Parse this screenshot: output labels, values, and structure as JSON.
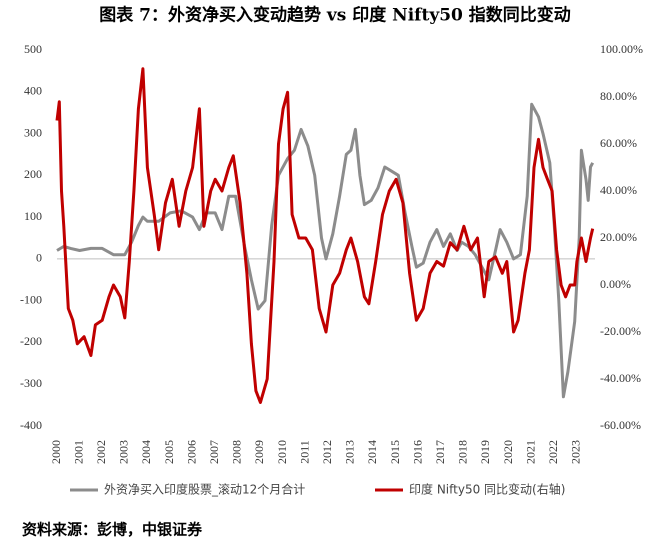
{
  "chart_data": {
    "type": "line",
    "title": "图表 7：外资净买入变动趋势 vs 印度 Nifty50 指数同比变动",
    "source": "资料来源：彭博，中银证券",
    "xlim": [
      2000,
      2023.8
    ],
    "xticks": [
      2000,
      2001,
      2002,
      2003,
      2004,
      2005,
      2006,
      2007,
      2008,
      2009,
      2010,
      2011,
      2012,
      2013,
      2014,
      2015,
      2016,
      2017,
      2018,
      2019,
      2020,
      2021,
      2022,
      2023
    ],
    "ylim": [
      -400,
      500
    ],
    "yticks": [
      -400,
      -300,
      -200,
      -100,
      0,
      100,
      200,
      300,
      400,
      500
    ],
    "y2lim": [
      -60,
      100
    ],
    "y2ticks": [
      {
        "value": -60,
        "label": "-60.00%"
      },
      {
        "value": -40,
        "label": "-40.00%"
      },
      {
        "value": -20,
        "label": "-20.00%"
      },
      {
        "value": 0,
        "label": "0.00%"
      },
      {
        "value": 20,
        "label": "20.00%"
      },
      {
        "value": 40,
        "label": "40.00%"
      },
      {
        "value": 60,
        "label": "60.00%"
      },
      {
        "value": 80,
        "label": "80.00%"
      },
      {
        "value": 100,
        "label": "100.00%"
      }
    ],
    "grid": false,
    "legend": "bottom",
    "series": [
      {
        "name": "外资净买入印度股票_滚动12个月合计",
        "color": "#8c8c8c",
        "axis": "y",
        "x": [
          2000,
          2000.3,
          2000.6,
          2001,
          2001.5,
          2002,
          2002.5,
          2003,
          2003.3,
          2003.6,
          2003.8,
          2004,
          2004.5,
          2005,
          2005.5,
          2006,
          2006.3,
          2006.6,
          2007,
          2007.3,
          2007.6,
          2007.9,
          2008.3,
          2008.6,
          2008.9,
          2009.2,
          2009.5,
          2009.8,
          2010.2,
          2010.5,
          2010.8,
          2011.1,
          2011.4,
          2011.7,
          2011.9,
          2012.2,
          2012.5,
          2012.8,
          2013,
          2013.2,
          2013.4,
          2013.6,
          2013.9,
          2014.2,
          2014.5,
          2014.8,
          2015.1,
          2015.4,
          2015.7,
          2015.9,
          2016.2,
          2016.5,
          2016.8,
          2017.1,
          2017.4,
          2017.7,
          2017.9,
          2018.2,
          2018.5,
          2018.8,
          2019.1,
          2019.4,
          2019.6,
          2019.9,
          2020.2,
          2020.5,
          2020.8,
          2021.0,
          2021.3,
          2021.5,
          2021.8,
          2022.0,
          2022.2,
          2022.4,
          2022.6,
          2022.9,
          2023.1,
          2023.2,
          2023.4,
          2023.5,
          2023.6,
          2023.7
        ],
        "values": [
          20,
          30,
          25,
          20,
          25,
          25,
          10,
          10,
          40,
          80,
          100,
          90,
          90,
          110,
          115,
          100,
          70,
          110,
          110,
          70,
          150,
          150,
          30,
          -50,
          -120,
          -100,
          80,
          200,
          240,
          260,
          310,
          270,
          200,
          50,
          0,
          60,
          150,
          250,
          260,
          310,
          200,
          130,
          140,
          170,
          220,
          210,
          200,
          110,
          30,
          -20,
          -10,
          40,
          70,
          30,
          60,
          20,
          40,
          30,
          10,
          -20,
          -50,
          20,
          70,
          40,
          0,
          10,
          150,
          370,
          340,
          300,
          230,
          80,
          -100,
          -330,
          -270,
          -150,
          50,
          260,
          190,
          140,
          220,
          230
        ]
      },
      {
        "name": "印度 Nifty50 同比变动(右轴)",
        "color": "#c00000",
        "axis": "y2",
        "x": [
          2000,
          2000.1,
          2000.2,
          2000.3,
          2000.5,
          2000.7,
          2000.9,
          2001.2,
          2001.5,
          2001.7,
          2002,
          2002.3,
          2002.5,
          2002.8,
          2003,
          2003.2,
          2003.4,
          2003.6,
          2003.8,
          2004,
          2004.3,
          2004.5,
          2004.8,
          2005.1,
          2005.4,
          2005.7,
          2006,
          2006.3,
          2006.5,
          2006.8,
          2007,
          2007.3,
          2007.6,
          2007.8,
          2008.1,
          2008.4,
          2008.6,
          2008.8,
          2009.0,
          2009.3,
          2009.6,
          2009.8,
          2010,
          2010.2,
          2010.4,
          2010.7,
          2011,
          2011.3,
          2011.6,
          2011.9,
          2012.2,
          2012.5,
          2012.8,
          2013,
          2013.3,
          2013.6,
          2013.8,
          2014.1,
          2014.4,
          2014.7,
          2015.0,
          2015.3,
          2015.6,
          2015.9,
          2016.2,
          2016.5,
          2016.8,
          2017.1,
          2017.4,
          2017.7,
          2018.0,
          2018.3,
          2018.6,
          2018.9,
          2019.1,
          2019.4,
          2019.7,
          2019.9,
          2020.2,
          2020.4,
          2020.7,
          2020.9,
          2021.1,
          2021.3,
          2021.5,
          2021.7,
          2021.9,
          2022.1,
          2022.3,
          2022.5,
          2022.7,
          2022.9,
          2023.0,
          2023.2,
          2023.4,
          2023.6,
          2023.7
        ],
        "values": [
          70,
          78,
          40,
          25,
          -10,
          -15,
          -25,
          -22,
          -30,
          -17,
          -15,
          -5,
          0,
          -5,
          -14,
          10,
          40,
          75,
          92,
          50,
          30,
          15,
          35,
          45,
          25,
          40,
          50,
          75,
          25,
          40,
          45,
          40,
          50,
          55,
          35,
          5,
          -25,
          -45,
          -50,
          -40,
          10,
          60,
          75,
          82,
          30,
          20,
          20,
          15,
          -10,
          -20,
          0,
          5,
          15,
          20,
          10,
          -5,
          -8,
          10,
          30,
          40,
          45,
          35,
          5,
          -15,
          -10,
          5,
          10,
          8,
          18,
          15,
          25,
          15,
          20,
          -5,
          10,
          12,
          5,
          10,
          -20,
          -15,
          5,
          15,
          50,
          62,
          50,
          45,
          40,
          15,
          0,
          -5,
          0,
          0,
          10,
          20,
          10,
          20,
          24
        ]
      }
    ]
  }
}
